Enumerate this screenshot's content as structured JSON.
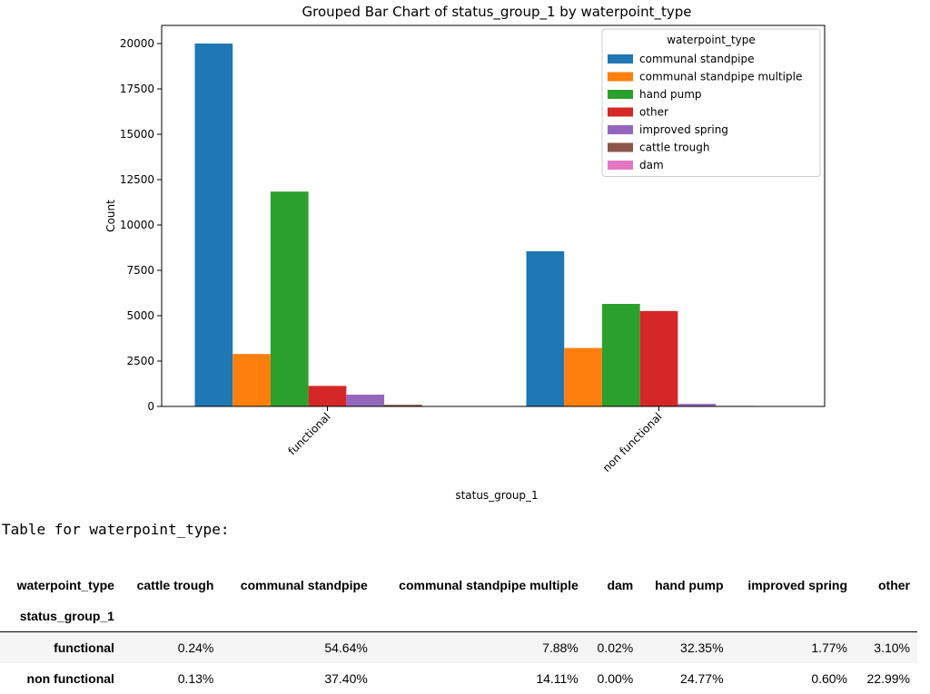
{
  "chart_data": {
    "type": "bar",
    "title": "Grouped Bar Chart of status_group_1 by waterpoint_type",
    "xlabel": "status_group_1",
    "ylabel": "Count",
    "ylim": [
      0,
      21000
    ],
    "yticks": [
      0,
      2500,
      5000,
      7500,
      10000,
      12500,
      15000,
      17500,
      20000
    ],
    "yticks_labels": [
      "0",
      "2500",
      "5000",
      "7500",
      "10000",
      "12500",
      "15000",
      "17500",
      "20000"
    ],
    "categories": [
      "functional",
      "non functional"
    ],
    "legend_title": "waterpoint_type",
    "legend_position": "top-right",
    "grid": false,
    "series": [
      {
        "name": "communal standpipe",
        "color": "#1f77b4",
        "values": [
          20000,
          8550
        ]
      },
      {
        "name": "communal standpipe multiple",
        "color": "#ff7f0e",
        "values": [
          2890,
          3220
        ]
      },
      {
        "name": "hand pump",
        "color": "#2ca02c",
        "values": [
          11840,
          5650
        ]
      },
      {
        "name": "other",
        "color": "#d62728",
        "values": [
          1130,
          5260
        ]
      },
      {
        "name": "improved spring",
        "color": "#9467bd",
        "values": [
          650,
          140
        ]
      },
      {
        "name": "cattle trough",
        "color": "#8c564b",
        "values": [
          90,
          30
        ]
      },
      {
        "name": "dam",
        "color": "#e377c2",
        "values": [
          5,
          0
        ]
      }
    ]
  },
  "table": {
    "caption": "Table for waterpoint_type:",
    "columns_name": "waterpoint_type",
    "index_name": "status_group_1",
    "columns": [
      "cattle trough",
      "communal standpipe",
      "communal standpipe multiple",
      "dam",
      "hand pump",
      "improved spring",
      "other"
    ],
    "rows": [
      {
        "index": "functional",
        "values": [
          "0.24%",
          "54.64%",
          "7.88%",
          "0.02%",
          "32.35%",
          "1.77%",
          "3.10%"
        ]
      },
      {
        "index": "non functional",
        "values": [
          "0.13%",
          "37.40%",
          "14.11%",
          "0.00%",
          "24.77%",
          "0.60%",
          "22.99%"
        ]
      }
    ]
  }
}
